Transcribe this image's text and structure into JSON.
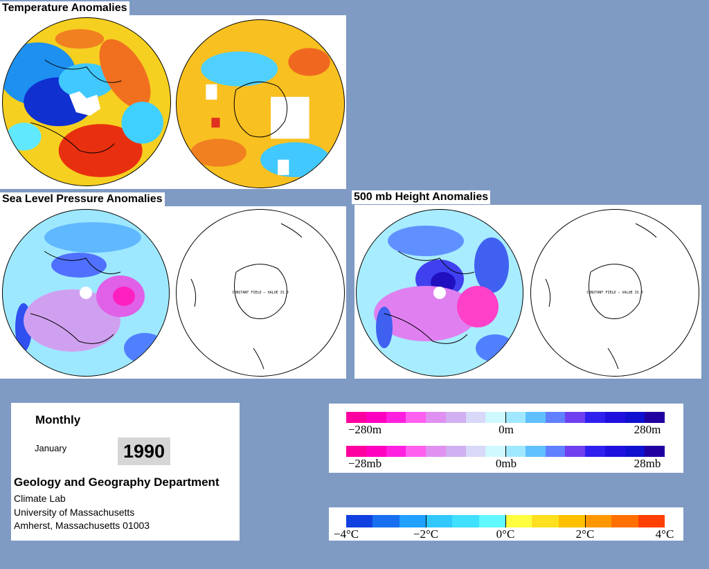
{
  "titles": {
    "temperature": "Temperature Anomalies",
    "slp": "Sea Level Pressure Anomalies",
    "height500": "500 mb Height Anomalies"
  },
  "constant_field_label": "CONSTANT FIELD — VALUE IS 0",
  "info": {
    "period": "Monthly",
    "month": "January",
    "year": "1990",
    "department": "Geology and Geography Department",
    "lab": "Climate Lab",
    "university": "University of Massachusetts",
    "address": "Amherst, Massachusetts 01003"
  },
  "legend_height": {
    "ticks": [
      "−280m",
      "0m",
      "280m"
    ],
    "colors": [
      "#ff00a0",
      "#ff00c0",
      "#ff20e0",
      "#ff60f0",
      "#e090f0",
      "#d0b0f0",
      "#d8d8f8",
      "#d0f8ff",
      "#a0e8ff",
      "#60c0ff",
      "#6080ff",
      "#7040f0",
      "#3020f0",
      "#2010e0",
      "#1010d0",
      "#2000a0"
    ]
  },
  "legend_pressure": {
    "ticks": [
      "−28mb",
      "0mb",
      "28mb"
    ],
    "colors": [
      "#ff00a0",
      "#ff00c0",
      "#ff20e0",
      "#ff60f0",
      "#e090f0",
      "#d0b0f0",
      "#d8d8f8",
      "#d0f8ff",
      "#a0e8ff",
      "#60c0ff",
      "#6080ff",
      "#7040f0",
      "#3020f0",
      "#2010e0",
      "#1010d0",
      "#2000a0"
    ]
  },
  "legend_temperature": {
    "ticks": [
      "−4°C",
      "−2°C",
      "0°C",
      "2°C",
      "4°C"
    ],
    "colors": [
      "#1040e0",
      "#1870f0",
      "#20a0ff",
      "#30c8ff",
      "#40e0ff",
      "#60f8ff",
      "#ffff40",
      "#ffe020",
      "#ffc000",
      "#ff9800",
      "#ff7000",
      "#ff4000"
    ]
  }
}
